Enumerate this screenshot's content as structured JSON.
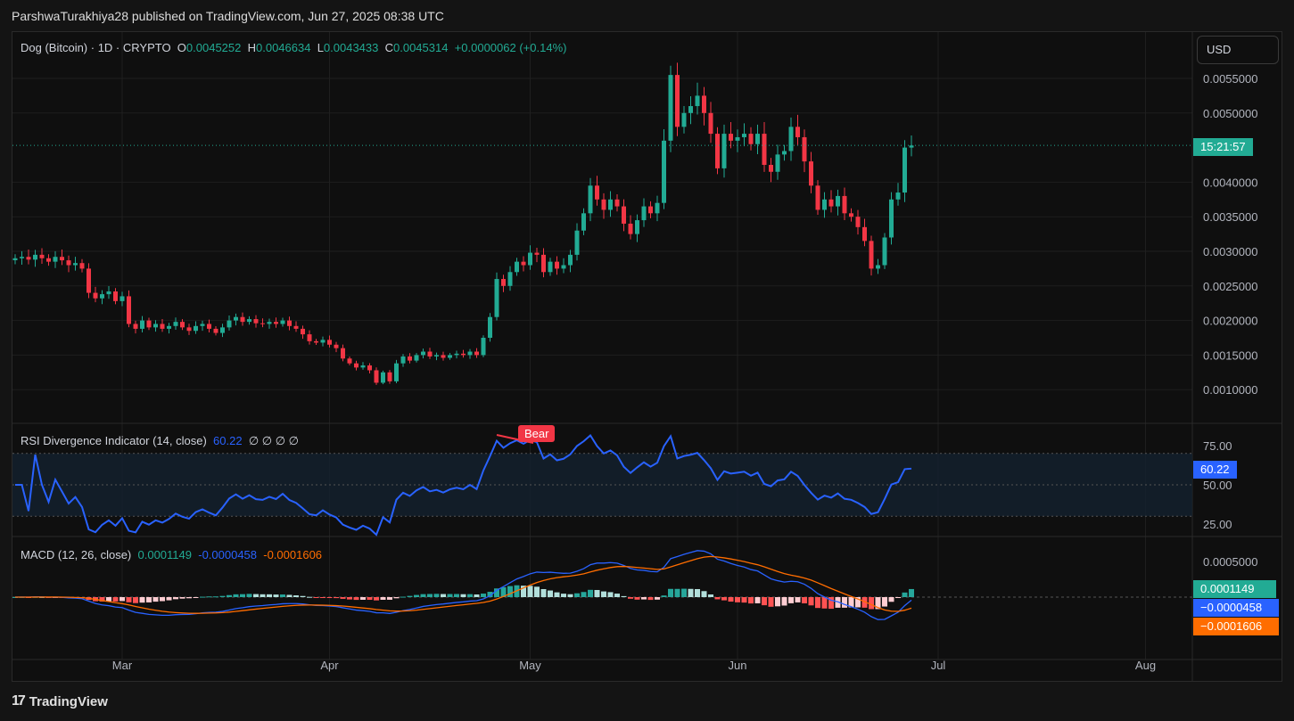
{
  "header": {
    "published": "ParshwaTurakhiya28 published on TradingView.com, Jun 27, 2025 08:38 UTC"
  },
  "legend": {
    "symbol": "Dog (Bitcoin) · 1D · CRYPTO",
    "o_label": "O",
    "o": "0.0045252",
    "h_label": "H",
    "h": "0.0046634",
    "l_label": "L",
    "l": "0.0043433",
    "c_label": "C",
    "c": "0.0045314",
    "change": "+0.0000062 (+0.14%)"
  },
  "currency": "USD",
  "countdown": "15:21:57",
  "rsi": {
    "title": "RSI Divergence Indicator (14, close)",
    "value": "60.22",
    "extras": "∅ ∅ ∅ ∅",
    "bear_label": "Bear",
    "ticks": [
      "75.00",
      "50.00",
      "25.00"
    ]
  },
  "macd": {
    "title": "MACD (12, 26, close)",
    "hist": "0.0001149",
    "macd": "-0.0000458",
    "signal": "-0.0001606",
    "hist_tag": "0.0001149",
    "macd_tag": "−0.0000458",
    "signal_tag": "−0.0001606",
    "ticks": [
      "0.0005000"
    ]
  },
  "footer": {
    "brand": "TradingView"
  },
  "colors": {
    "up": "#22ab94",
    "down": "#f23645",
    "rsi": "#2962ff",
    "signal": "#ff6d00"
  },
  "chart_data": {
    "type": "candlestick",
    "start_date": "2025-02-13",
    "interval": "1D",
    "ylim": [
      0.0007,
      0.0058
    ],
    "price_ticks": [
      "0.0055000",
      "0.0050000",
      "0.0040000",
      "0.0035000",
      "0.0030000",
      "0.0025000",
      "0.0020000",
      "0.0015000",
      "0.0010000"
    ],
    "month_labels": [
      {
        "label": "Mar",
        "day": 16
      },
      {
        "label": "Apr",
        "day": 47
      },
      {
        "label": "May",
        "day": 77
      },
      {
        "label": "Jun",
        "day": 108
      },
      {
        "label": "Jul",
        "day": 138
      },
      {
        "label": "Aug",
        "day": 169
      }
    ],
    "last_price": 0.0045314,
    "closes": [
      0.0029,
      0.00292,
      0.00288,
      0.00295,
      0.0029,
      0.00285,
      0.00292,
      0.00287,
      0.0028,
      0.00283,
      0.00275,
      0.0024,
      0.00232,
      0.00238,
      0.00242,
      0.00228,
      0.00235,
      0.00195,
      0.00188,
      0.002,
      0.0019,
      0.00195,
      0.00188,
      0.00192,
      0.00198,
      0.0019,
      0.00185,
      0.00192,
      0.00195,
      0.00188,
      0.00182,
      0.0019,
      0.002,
      0.00205,
      0.00198,
      0.00202,
      0.00196,
      0.00195,
      0.00198,
      0.00195,
      0.002,
      0.00192,
      0.00188,
      0.0018,
      0.0017,
      0.00168,
      0.00172,
      0.00165,
      0.0016,
      0.00145,
      0.00138,
      0.00132,
      0.00135,
      0.00128,
      0.0011,
      0.00125,
      0.00112,
      0.00138,
      0.00148,
      0.00142,
      0.0015,
      0.00155,
      0.00148,
      0.0015,
      0.00146,
      0.0015,
      0.00152,
      0.0015,
      0.00155,
      0.0015,
      0.00175,
      0.00205,
      0.0026,
      0.0025,
      0.0027,
      0.00285,
      0.0028,
      0.00298,
      0.00295,
      0.0027,
      0.00285,
      0.00275,
      0.0028,
      0.00295,
      0.0033,
      0.00355,
      0.00395,
      0.00375,
      0.0036,
      0.00375,
      0.00365,
      0.0034,
      0.00325,
      0.00345,
      0.00365,
      0.00355,
      0.0037,
      0.0046,
      0.00555,
      0.0048,
      0.005,
      0.0051,
      0.00525,
      0.005,
      0.0047,
      0.0042,
      0.0047,
      0.0046,
      0.00465,
      0.0047,
      0.00455,
      0.0047,
      0.00425,
      0.00415,
      0.0044,
      0.00445,
      0.0048,
      0.00465,
      0.0043,
      0.00395,
      0.0036,
      0.00375,
      0.00365,
      0.0038,
      0.00355,
      0.0035,
      0.00335,
      0.00315,
      0.00275,
      0.0028,
      0.0032,
      0.00375,
      0.00385,
      0.0045,
      0.00453
    ]
  }
}
